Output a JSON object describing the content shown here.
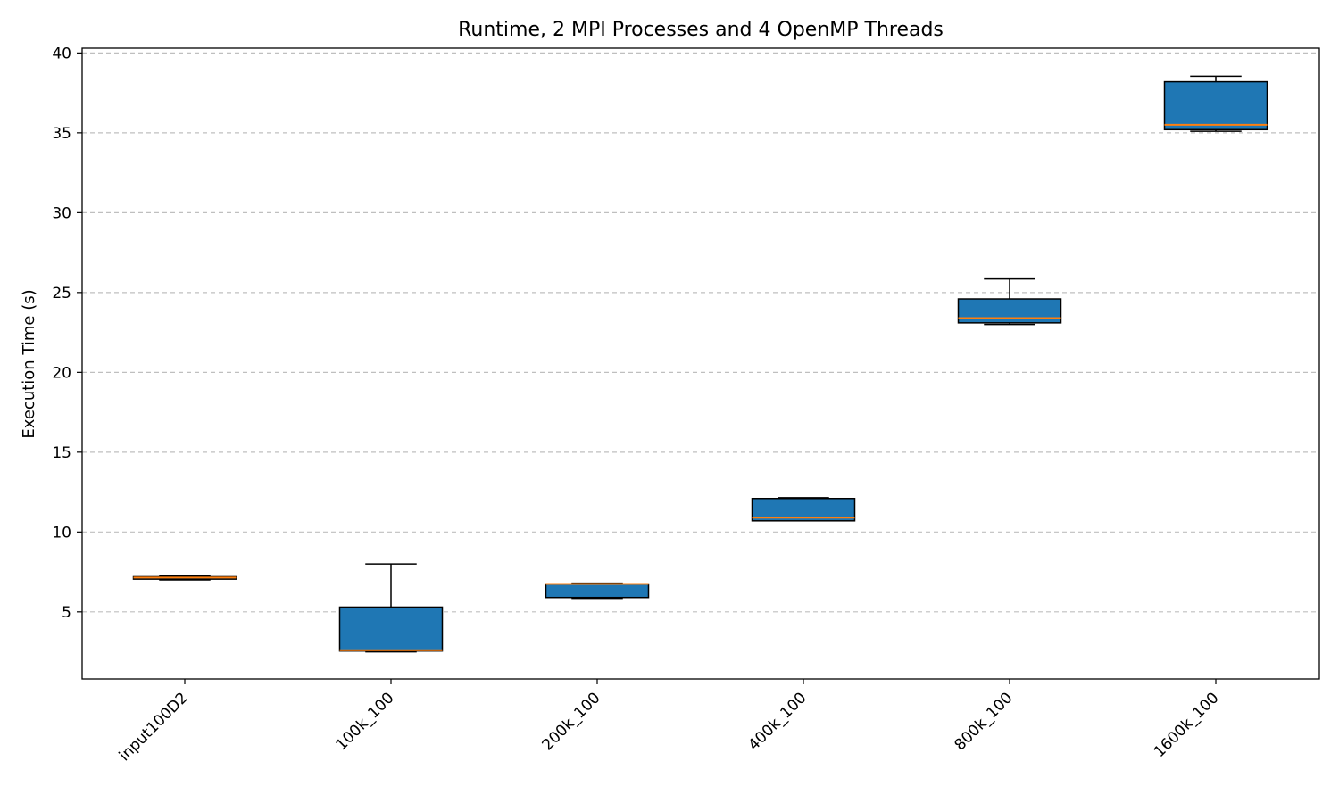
{
  "chart_data": {
    "type": "box",
    "title": "Runtime, 2 MPI Processes and 4 OpenMP Threads",
    "xlabel": "",
    "ylabel": "Execution Time (s)",
    "ylim": [
      0.8,
      40.3
    ],
    "yticks": [
      5,
      10,
      15,
      20,
      25,
      30,
      35,
      40
    ],
    "grid": "y-dashed",
    "box_color": "#1f77b4",
    "median_color": "#ff7f0e",
    "categories": [
      "input100D2",
      "100k_100",
      "200k_100",
      "400k_100",
      "800k_100",
      "1600k_100"
    ],
    "boxes": [
      {
        "whisker_low": 7.0,
        "q1": 7.05,
        "median": 7.15,
        "q3": 7.2,
        "whisker_high": 7.25
      },
      {
        "whisker_low": 2.5,
        "q1": 2.55,
        "median": 2.6,
        "q3": 5.3,
        "whisker_high": 8.0
      },
      {
        "whisker_low": 5.85,
        "q1": 5.9,
        "median": 6.75,
        "q3": 6.75,
        "whisker_high": 6.8
      },
      {
        "whisker_low": 10.7,
        "q1": 10.7,
        "median": 10.9,
        "q3": 12.1,
        "whisker_high": 12.15
      },
      {
        "whisker_low": 23.0,
        "q1": 23.1,
        "median": 23.4,
        "q3": 24.6,
        "whisker_high": 25.85
      },
      {
        "whisker_low": 35.1,
        "q1": 35.2,
        "median": 35.5,
        "q3": 38.2,
        "whisker_high": 38.55
      }
    ]
  }
}
